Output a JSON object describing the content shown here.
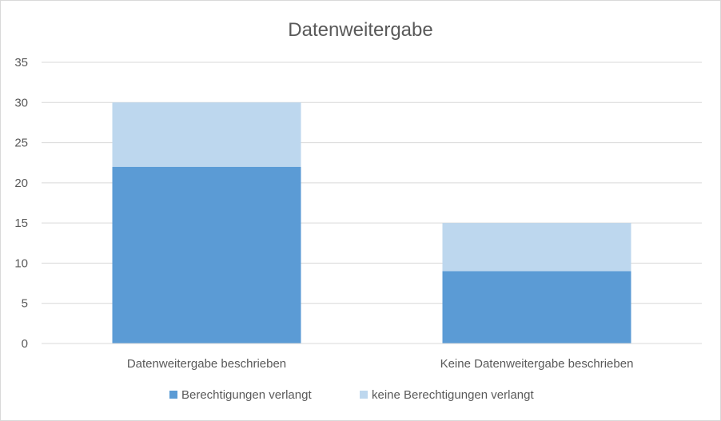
{
  "chart_data": {
    "type": "bar",
    "stacked": true,
    "title": "Datenweitergabe",
    "categories": [
      "Datenweitergabe beschrieben",
      "Keine Datenweitergabe beschrieben"
    ],
    "series": [
      {
        "name": "Berechtigungen verlangt",
        "values": [
          22,
          9
        ],
        "color": "#5b9bd5"
      },
      {
        "name": "keine Berechtigungen verlangt",
        "values": [
          8,
          6
        ],
        "color": "#bdd7ee"
      }
    ],
    "ylim": [
      0,
      35
    ],
    "yticks": [
      0,
      5,
      10,
      15,
      20,
      25,
      30,
      35
    ],
    "grid": true,
    "legend_position": "bottom",
    "gridline_color": "#d9d9d9"
  }
}
